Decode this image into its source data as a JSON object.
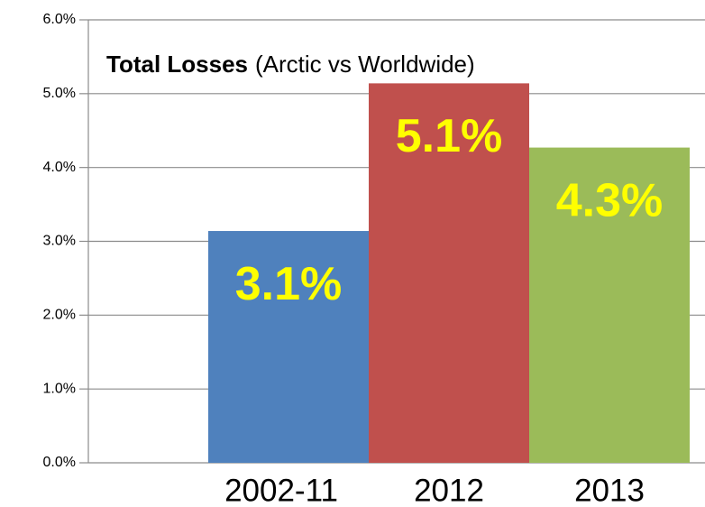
{
  "chart_data": {
    "type": "bar",
    "title": "Total Losses",
    "subtitle": "(Arctic vs Worldwide)",
    "categories": [
      "2002-11",
      "2012",
      "2013"
    ],
    "values": [
      3.14,
      5.14,
      4.27
    ],
    "value_labels": [
      "3.1%",
      "5.1%",
      "4.3%"
    ],
    "colors": [
      "#4f81bd",
      "#c0504d",
      "#9bbb59"
    ],
    "value_label_color": "#ffff00",
    "ylim": [
      0,
      6
    ],
    "yticks": [
      {
        "value": 0,
        "label": "0.0%"
      },
      {
        "value": 1,
        "label": "1.0%"
      },
      {
        "value": 2,
        "label": "2.0%"
      },
      {
        "value": 3,
        "label": "3.0%"
      },
      {
        "value": 4,
        "label": "4.0%"
      },
      {
        "value": 5,
        "label": "5.0%"
      },
      {
        "value": 6,
        "label": "6.0%"
      }
    ],
    "grid": true
  }
}
